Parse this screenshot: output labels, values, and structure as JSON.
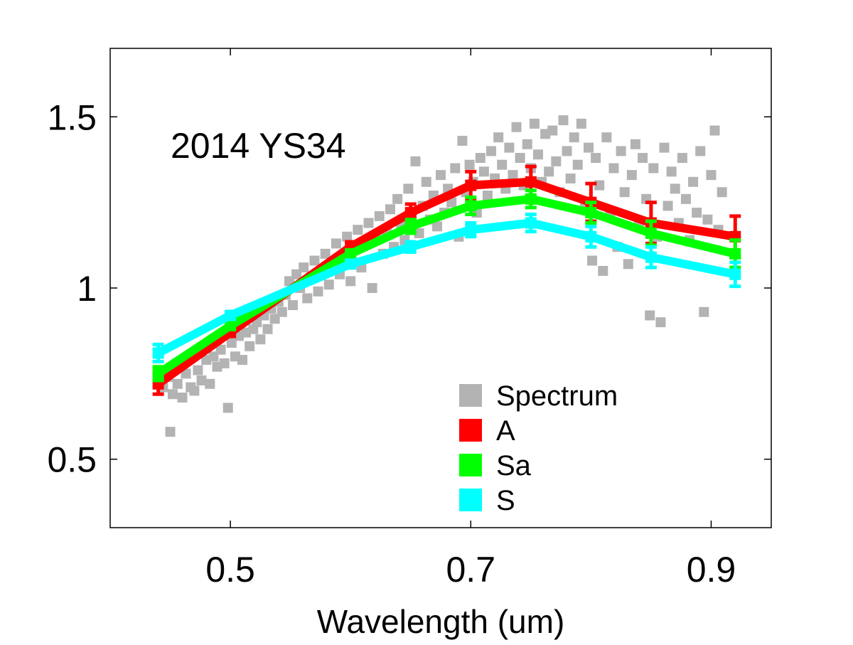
{
  "chart_data": {
    "type": "line",
    "title": "2014 YS34",
    "xlabel": "Wavelength (um)",
    "ylabel": "",
    "xlim": [
      0.4,
      0.95
    ],
    "ylim": [
      0.3,
      1.7
    ],
    "xticks": [
      {
        "value": 0.5,
        "label": "0.5"
      },
      {
        "value": 0.7,
        "label": "0.7"
      },
      {
        "value": 0.9,
        "label": "0.9"
      }
    ],
    "yticks": [
      {
        "value": 0.5,
        "label": "0.5"
      },
      {
        "value": 1.0,
        "label": "1"
      },
      {
        "value": 1.5,
        "label": "1.5"
      }
    ],
    "grid": false,
    "legend_position": "bottom-right",
    "colors": {
      "Spectrum": "#b3b3b3",
      "A": "#ff0000",
      "Sa": "#00ff00",
      "S": "#00ffff"
    },
    "series": [
      {
        "name": "A",
        "x": [
          0.44,
          0.5,
          0.6,
          0.65,
          0.7,
          0.75,
          0.8,
          0.85,
          0.92
        ],
        "y": [
          0.72,
          0.87,
          1.12,
          1.22,
          1.3,
          1.31,
          1.25,
          1.19,
          1.15
        ],
        "error": [
          0.03,
          0.01,
          0.015,
          0.025,
          0.04,
          0.045,
          0.055,
          0.06,
          0.06
        ]
      },
      {
        "name": "Sa",
        "x": [
          0.44,
          0.5,
          0.6,
          0.65,
          0.7,
          0.75,
          0.8,
          0.85,
          0.92
        ],
        "y": [
          0.75,
          0.89,
          1.1,
          1.18,
          1.24,
          1.26,
          1.22,
          1.16,
          1.1
        ],
        "error": [
          0.02,
          0.01,
          0.01,
          0.02,
          0.025,
          0.025,
          0.03,
          0.035,
          0.04
        ]
      },
      {
        "name": "S",
        "x": [
          0.44,
          0.5,
          0.6,
          0.65,
          0.7,
          0.75,
          0.8,
          0.85,
          0.92
        ],
        "y": [
          0.81,
          0.92,
          1.07,
          1.12,
          1.17,
          1.19,
          1.15,
          1.09,
          1.04
        ],
        "error": [
          0.025,
          0.01,
          0.01,
          0.015,
          0.02,
          0.025,
          0.03,
          0.03,
          0.035
        ]
      }
    ],
    "spectrum": {
      "name": "Spectrum",
      "points": [
        [
          0.45,
          0.58
        ],
        [
          0.444,
          0.71
        ],
        [
          0.448,
          0.74
        ],
        [
          0.452,
          0.69
        ],
        [
          0.456,
          0.72
        ],
        [
          0.46,
          0.68
        ],
        [
          0.463,
          0.75
        ],
        [
          0.467,
          0.71
        ],
        [
          0.47,
          0.7
        ],
        [
          0.473,
          0.76
        ],
        [
          0.476,
          0.73
        ],
        [
          0.48,
          0.79
        ],
        [
          0.483,
          0.72
        ],
        [
          0.486,
          0.8
        ],
        [
          0.489,
          0.77
        ],
        [
          0.492,
          0.82
        ],
        [
          0.495,
          0.78
        ],
        [
          0.498,
          0.65
        ],
        [
          0.501,
          0.84
        ],
        [
          0.504,
          0.8
        ],
        [
          0.507,
          0.86
        ],
        [
          0.51,
          0.79
        ],
        [
          0.513,
          0.87
        ],
        [
          0.516,
          0.83
        ],
        [
          0.519,
          0.88
        ],
        [
          0.522,
          0.9
        ],
        [
          0.525,
          0.85
        ],
        [
          0.528,
          0.92
        ],
        [
          0.531,
          0.88
        ],
        [
          0.534,
          0.94
        ],
        [
          0.537,
          0.91
        ],
        [
          0.54,
          0.96
        ],
        [
          0.543,
          0.93
        ],
        [
          0.546,
          0.98
        ],
        [
          0.549,
          1.02
        ],
        [
          0.552,
          0.95
        ],
        [
          0.555,
          1.04
        ],
        [
          0.558,
          1.0
        ],
        [
          0.561,
          1.06
        ],
        [
          0.564,
          0.97
        ],
        [
          0.567,
          1.03
        ],
        [
          0.57,
          1.08
        ],
        [
          0.573,
          0.99
        ],
        [
          0.576,
          1.05
        ],
        [
          0.579,
          1.1
        ],
        [
          0.582,
          1.01
        ],
        [
          0.585,
          1.07
        ],
        [
          0.588,
          1.13
        ],
        [
          0.591,
          1.04
        ],
        [
          0.594,
          1.09
        ],
        [
          0.597,
          1.15
        ],
        [
          0.6,
          1.02
        ],
        [
          0.603,
          1.11
        ],
        [
          0.606,
          1.17
        ],
        [
          0.609,
          1.06
        ],
        [
          0.612,
          1.13
        ],
        [
          0.615,
          1.19
        ],
        [
          0.618,
          1.0
        ],
        [
          0.621,
          1.15
        ],
        [
          0.624,
          1.21
        ],
        [
          0.627,
          1.1
        ],
        [
          0.63,
          1.17
        ],
        [
          0.633,
          1.23
        ],
        [
          0.636,
          1.12
        ],
        [
          0.639,
          1.26
        ],
        [
          0.642,
          1.19
        ],
        [
          0.645,
          1.14
        ],
        [
          0.648,
          1.29
        ],
        [
          0.651,
          1.21
        ],
        [
          0.654,
          1.37
        ],
        [
          0.657,
          1.16
        ],
        [
          0.66,
          1.24
        ],
        [
          0.663,
          1.31
        ],
        [
          0.666,
          1.2
        ],
        [
          0.669,
          1.27
        ],
        [
          0.672,
          1.18
        ],
        [
          0.675,
          1.33
        ],
        [
          0.678,
          1.22
        ],
        [
          0.681,
          1.29
        ],
        [
          0.684,
          1.25
        ],
        [
          0.687,
          1.35
        ],
        [
          0.69,
          1.15
        ],
        [
          0.693,
          1.43
        ],
        [
          0.696,
          1.28
        ],
        [
          0.699,
          1.36
        ],
        [
          0.702,
          1.31
        ],
        [
          0.705,
          1.22
        ],
        [
          0.708,
          1.38
        ],
        [
          0.711,
          1.34
        ],
        [
          0.714,
          1.27
        ],
        [
          0.717,
          1.4
        ],
        [
          0.72,
          1.32
        ],
        [
          0.723,
          1.44
        ],
        [
          0.726,
          1.36
        ],
        [
          0.729,
          1.29
        ],
        [
          0.732,
          1.41
        ],
        [
          0.735,
          1.33
        ],
        [
          0.738,
          1.47
        ],
        [
          0.741,
          1.38
        ],
        [
          0.744,
          1.3
        ],
        [
          0.747,
          1.42
        ],
        [
          0.75,
          1.35
        ],
        [
          0.753,
          1.48
        ],
        [
          0.756,
          1.39
        ],
        [
          0.759,
          1.31
        ],
        [
          0.762,
          1.45
        ],
        [
          0.765,
          1.34
        ],
        [
          0.768,
          1.46
        ],
        [
          0.771,
          1.37
        ],
        [
          0.774,
          1.28
        ],
        [
          0.777,
          1.49
        ],
        [
          0.78,
          1.4
        ],
        [
          0.783,
          1.32
        ],
        [
          0.786,
          1.44
        ],
        [
          0.789,
          1.36
        ],
        [
          0.792,
          1.48
        ],
        [
          0.795,
          1.25
        ],
        [
          0.798,
          1.41
        ],
        [
          0.801,
          1.08
        ],
        [
          0.804,
          1.38
        ],
        [
          0.807,
          1.3
        ],
        [
          0.81,
          1.05
        ],
        [
          0.813,
          1.44
        ],
        [
          0.816,
          1.22
        ],
        [
          0.819,
          1.35
        ],
        [
          0.822,
          1.12
        ],
        [
          0.825,
          1.4
        ],
        [
          0.828,
          1.28
        ],
        [
          0.831,
          1.07
        ],
        [
          0.834,
          1.33
        ],
        [
          0.837,
          1.42
        ],
        [
          0.84,
          1.18
        ],
        [
          0.843,
          1.38
        ],
        [
          0.846,
          1.26
        ],
        [
          0.849,
          0.92
        ],
        [
          0.852,
          1.35
        ],
        [
          0.855,
          1.15
        ],
        [
          0.858,
          0.9
        ],
        [
          0.861,
          1.41
        ],
        [
          0.864,
          1.24
        ],
        [
          0.867,
          1.34
        ],
        [
          0.87,
          1.29
        ],
        [
          0.873,
          1.19
        ],
        [
          0.876,
          1.38
        ],
        [
          0.879,
          1.26
        ],
        [
          0.882,
          1.14
        ],
        [
          0.885,
          1.31
        ],
        [
          0.888,
          1.22
        ],
        [
          0.891,
          1.4
        ],
        [
          0.894,
          0.93
        ],
        [
          0.897,
          1.2
        ],
        [
          0.9,
          1.33
        ],
        [
          0.903,
          1.46
        ],
        [
          0.906,
          1.17
        ],
        [
          0.909,
          1.28
        ]
      ]
    }
  }
}
